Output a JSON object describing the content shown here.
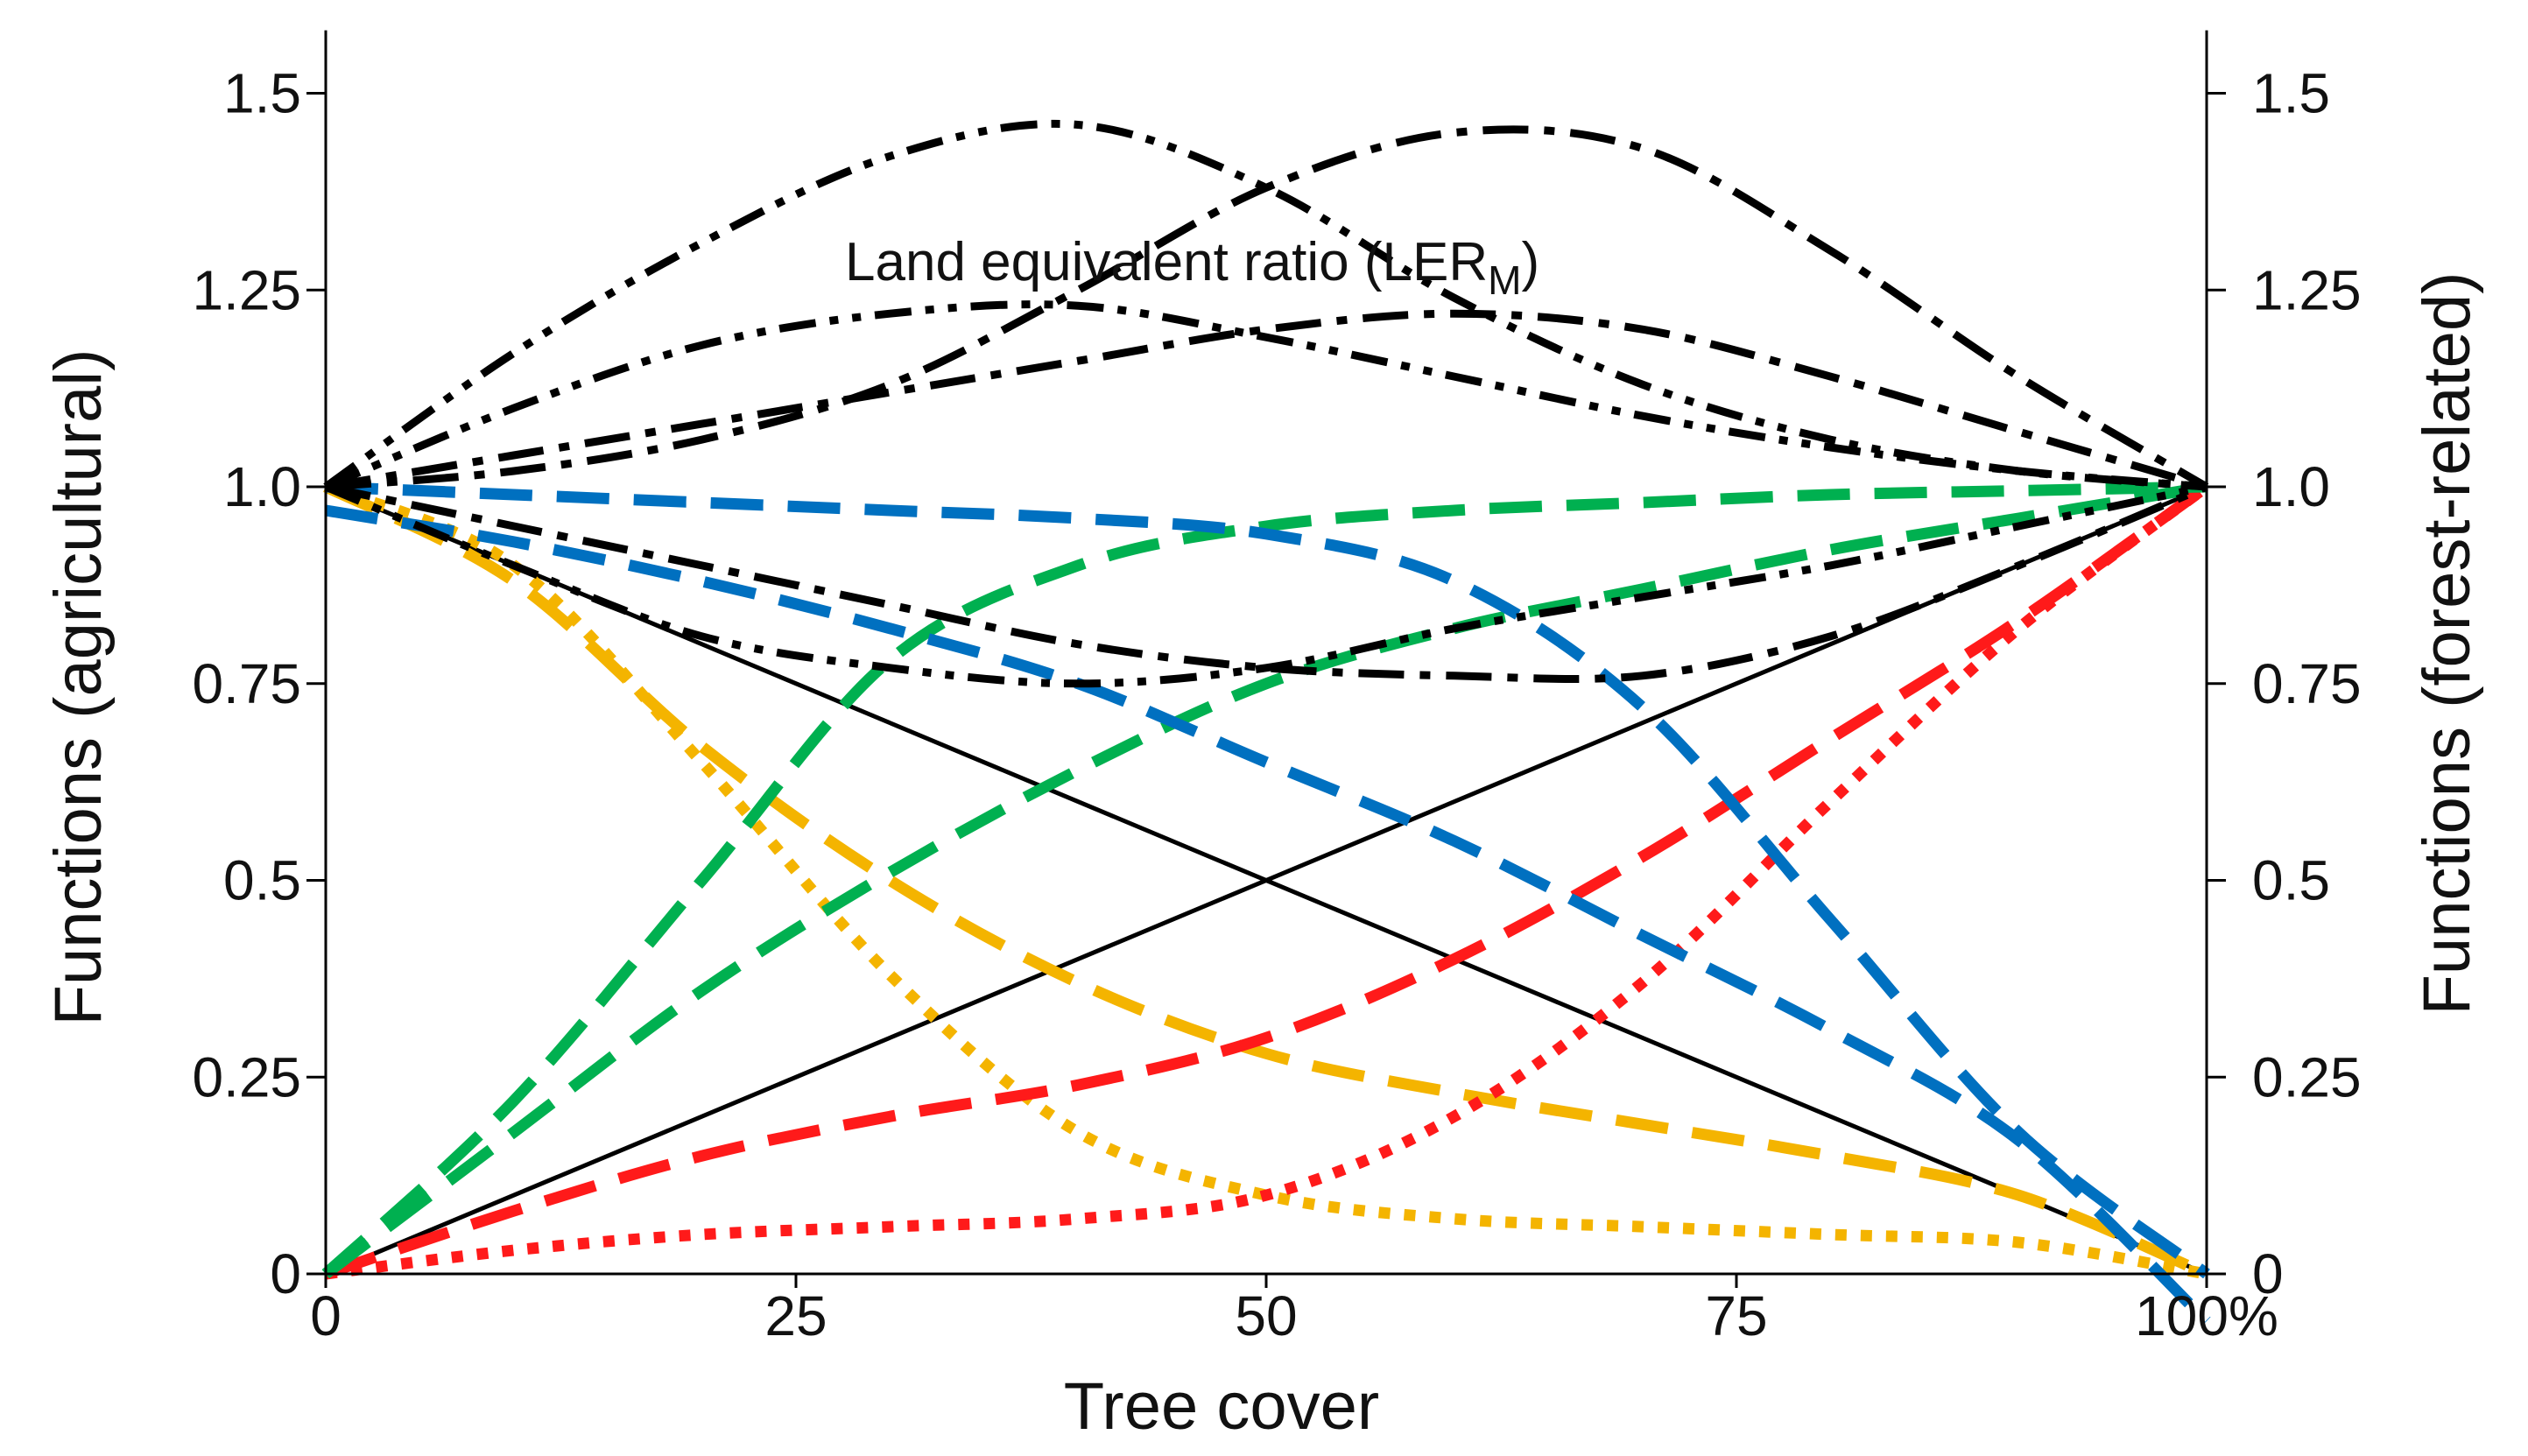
{
  "chart_data": {
    "type": "line",
    "title": "",
    "xlabel": "Tree cover",
    "ylabel_left": "Functions (agricultural)",
    "ylabel_right": "Functions (forest-related)",
    "annotation": {
      "text": "Land equivalent ratio (LER",
      "subscript": "M",
      "suffix": ")"
    },
    "xlim": [
      0,
      100
    ],
    "ylim": [
      0,
      1.58
    ],
    "x_ticks": [
      {
        "value": 0,
        "label": "0"
      },
      {
        "value": 25,
        "label": "25"
      },
      {
        "value": 50,
        "label": "50"
      },
      {
        "value": 75,
        "label": "75"
      },
      {
        "value": 100,
        "label": "100%"
      }
    ],
    "y_ticks_left": [
      {
        "value": 0,
        "label": "0"
      },
      {
        "value": 0.25,
        "label": "0.25"
      },
      {
        "value": 0.5,
        "label": "0.5"
      },
      {
        "value": 0.75,
        "label": "0.75"
      },
      {
        "value": 1.0,
        "label": "1.0"
      },
      {
        "value": 1.25,
        "label": "1.25"
      },
      {
        "value": 1.5,
        "label": "1.5"
      }
    ],
    "y_ticks_right": [
      {
        "value": 0,
        "label": "0"
      },
      {
        "value": 0.25,
        "label": "0.25"
      },
      {
        "value": 0.5,
        "label": "0.5"
      },
      {
        "value": 0.75,
        "label": "0.75"
      },
      {
        "value": 1.0,
        "label": "1.0"
      },
      {
        "value": 1.25,
        "label": "1.25"
      },
      {
        "value": 1.5,
        "label": "1.5"
      }
    ],
    "grid": false,
    "legend": "none",
    "series": [
      {
        "color": "#000000",
        "style": "solid",
        "x": [
          0,
          100
        ],
        "y": [
          1.0,
          0.0
        ]
      },
      {
        "color": "#000000",
        "style": "solid",
        "x": [
          0,
          100
        ],
        "y": [
          0.0,
          1.0
        ]
      },
      {
        "color": "#f4b400",
        "style": "dotted",
        "x": [
          0,
          10,
          20,
          30,
          40,
          50,
          60,
          70,
          80,
          90,
          100
        ],
        "y": [
          1.0,
          0.9,
          0.65,
          0.38,
          0.18,
          0.1,
          0.07,
          0.06,
          0.05,
          0.04,
          0.0
        ]
      },
      {
        "color": "#f4b400",
        "style": "dashed",
        "x": [
          0,
          10,
          20,
          30,
          40,
          50,
          60,
          70,
          80,
          90,
          100
        ],
        "y": [
          1.0,
          0.88,
          0.67,
          0.5,
          0.37,
          0.28,
          0.23,
          0.19,
          0.15,
          0.1,
          0.0
        ]
      },
      {
        "color": "#ff1a1a",
        "style": "dotted",
        "x": [
          0,
          10,
          20,
          30,
          40,
          50,
          60,
          70,
          80,
          90,
          100
        ],
        "y": [
          0.0,
          0.03,
          0.05,
          0.06,
          0.07,
          0.1,
          0.2,
          0.37,
          0.6,
          0.82,
          1.0
        ]
      },
      {
        "color": "#ff1a1a",
        "style": "dashed",
        "x": [
          0,
          10,
          20,
          30,
          40,
          50,
          60,
          70,
          80,
          90,
          100
        ],
        "y": [
          0.0,
          0.08,
          0.15,
          0.2,
          0.24,
          0.3,
          0.4,
          0.53,
          0.68,
          0.83,
          1.0
        ]
      },
      {
        "color": "#00b050",
        "style": "dashed",
        "x": [
          0,
          10,
          20,
          30,
          40,
          50,
          60,
          70,
          80,
          90,
          100
        ],
        "y": [
          0.0,
          0.22,
          0.5,
          0.78,
          0.9,
          0.95,
          0.97,
          0.98,
          0.99,
          0.995,
          1.0
        ]
      },
      {
        "color": "#00b050",
        "style": "dashed",
        "x": [
          0,
          10,
          20,
          30,
          40,
          50,
          60,
          70,
          80,
          90,
          100
        ],
        "y": [
          0.0,
          0.18,
          0.36,
          0.51,
          0.64,
          0.75,
          0.82,
          0.87,
          0.92,
          0.96,
          1.0
        ]
      },
      {
        "color": "#0070c0",
        "style": "dashed",
        "x": [
          0,
          10,
          20,
          30,
          40,
          50,
          60,
          70,
          80,
          90,
          100
        ],
        "y": [
          1.0,
          0.99,
          0.98,
          0.97,
          0.96,
          0.94,
          0.88,
          0.72,
          0.45,
          0.18,
          0.0
        ]
      },
      {
        "color": "#0070c0",
        "style": "dashed",
        "x": [
          0,
          10,
          20,
          30,
          40,
          50,
          60,
          70,
          80,
          90,
          100
        ],
        "y": [
          0.97,
          0.93,
          0.88,
          0.82,
          0.75,
          0.65,
          0.55,
          0.43,
          0.31,
          0.17,
          -0.06
        ]
      },
      {
        "color": "#000000",
        "style": "dashdotdot",
        "x": [
          0,
          10,
          20,
          30,
          40,
          50,
          60,
          70,
          80,
          90,
          100
        ],
        "y": [
          1.0,
          1.17,
          1.31,
          1.42,
          1.46,
          1.38,
          1.24,
          1.13,
          1.06,
          1.02,
          1.0
        ]
      },
      {
        "color": "#000000",
        "style": "dashdot",
        "x": [
          0,
          10,
          20,
          30,
          40,
          50,
          60,
          70,
          80,
          90,
          100
        ],
        "y": [
          1.0,
          1.02,
          1.06,
          1.13,
          1.25,
          1.38,
          1.45,
          1.43,
          1.3,
          1.14,
          1.0
        ]
      },
      {
        "color": "#000000",
        "style": "dashdotdot",
        "x": [
          0,
          10,
          20,
          30,
          40,
          50,
          60,
          70,
          80,
          90,
          100
        ],
        "y": [
          1.0,
          1.1,
          1.18,
          1.22,
          1.23,
          1.19,
          1.14,
          1.09,
          1.05,
          1.02,
          1.0
        ]
      },
      {
        "color": "#000000",
        "style": "dashdot",
        "x": [
          0,
          10,
          20,
          30,
          40,
          50,
          60,
          70,
          80,
          90,
          100
        ],
        "y": [
          1.0,
          1.04,
          1.08,
          1.12,
          1.16,
          1.2,
          1.22,
          1.2,
          1.14,
          1.07,
          1.0
        ]
      },
      {
        "color": "#000000",
        "style": "dashdotdot",
        "x": [
          0,
          10,
          20,
          30,
          40,
          50,
          60,
          70,
          80,
          90,
          100
        ],
        "y": [
          1.0,
          0.9,
          0.81,
          0.77,
          0.75,
          0.77,
          0.82,
          0.86,
          0.9,
          0.95,
          1.0
        ]
      },
      {
        "color": "#000000",
        "style": "dashdot",
        "x": [
          0,
          10,
          20,
          30,
          40,
          50,
          60,
          70,
          80,
          90,
          100
        ],
        "y": [
          1.0,
          0.95,
          0.9,
          0.85,
          0.8,
          0.77,
          0.76,
          0.76,
          0.81,
          0.9,
          1.0
        ]
      }
    ]
  }
}
